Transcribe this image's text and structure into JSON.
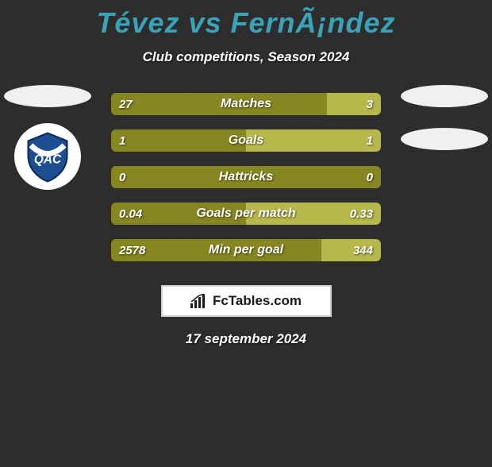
{
  "title": "Tévez vs FernÃ¡ndez",
  "subtitle": "Club competitions, Season 2024",
  "date": "17 september 2024",
  "colors": {
    "title": "#3aa3b8",
    "left_bar": "#878721",
    "right_bar": "#b7b84c",
    "background": "#2d2d2d",
    "ellipse": "#f0f0f0",
    "text": "#ffffff"
  },
  "footer": {
    "label": "FcTables.com"
  },
  "stats": [
    {
      "label": "Matches",
      "left_val": "27",
      "right_val": "3",
      "left_pct": 80,
      "right_pct": 20
    },
    {
      "label": "Goals",
      "left_val": "1",
      "right_val": "1",
      "left_pct": 50,
      "right_pct": 50
    },
    {
      "label": "Hattricks",
      "left_val": "0",
      "right_val": "0",
      "left_pct": 100,
      "right_pct": 0
    },
    {
      "label": "Goals per match",
      "left_val": "0.04",
      "right_val": "0.33",
      "left_pct": 50,
      "right_pct": 50
    },
    {
      "label": "Min per goal",
      "left_val": "2578",
      "right_val": "344",
      "left_pct": 78,
      "right_pct": 22
    }
  ],
  "bar_style": {
    "height": 28,
    "gap": 18,
    "border_radius": 6,
    "fontsize": 16
  }
}
